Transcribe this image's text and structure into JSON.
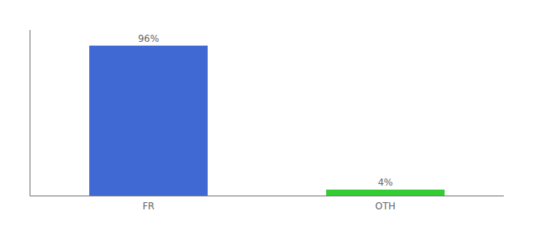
{
  "chart_data": {
    "type": "bar",
    "categories": [
      "FR",
      "OTH"
    ],
    "values": [
      96,
      4
    ],
    "value_labels": [
      "96%",
      "4%"
    ],
    "colors": [
      "#4169d4",
      "#33cc33"
    ],
    "ylim": [
      0,
      106
    ],
    "tick_labels": "x",
    "grid": false
  }
}
